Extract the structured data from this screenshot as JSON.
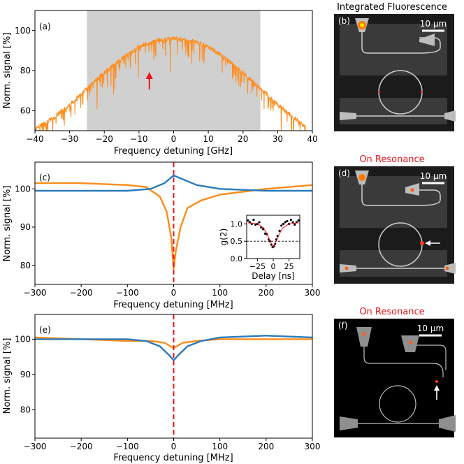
{
  "colors": {
    "orange": "#ff8c1a",
    "blue": "#2b7bba",
    "red": "#e8161b",
    "shade": "#d0d0d0",
    "micro_bg": "#1b1b1b",
    "device_bg": "#3a3a3a"
  },
  "chart_data": [
    {
      "type": "line",
      "panel": "(a)",
      "xlabel": "Frequency detuning [GHz]",
      "ylabel": "Norm. signal [%]",
      "xlim": [
        -40,
        40
      ],
      "ylim": [
        50,
        110
      ],
      "xticks": [
        "−40",
        "−30",
        "−20",
        "−10",
        "0",
        "10",
        "20",
        "30",
        "40"
      ],
      "yticks": [
        "60",
        "80",
        "100"
      ],
      "shaded_region": [
        -25,
        25
      ],
      "arrow_at_x": -7,
      "series": [
        {
          "name": "fluorescence",
          "color": "orange",
          "x": [
            -40,
            -35,
            -30,
            -25,
            -20,
            -15,
            -10,
            -5,
            0,
            5,
            10,
            15,
            20,
            25,
            30,
            35,
            38
          ],
          "values": [
            51,
            56,
            63,
            71,
            79,
            86,
            92,
            95,
            96,
            95,
            92,
            86,
            79,
            71,
            63,
            56,
            52
          ]
        }
      ]
    },
    {
      "type": "line",
      "panel": "(c)",
      "xlabel": "Frequency detuning [MHz]",
      "ylabel": "Norm. signal [%]",
      "xlim": [
        -300,
        300
      ],
      "ylim": [
        75,
        107
      ],
      "xticks": [
        "−300",
        "−200",
        "−100",
        "0",
        "100",
        "200",
        "300"
      ],
      "yticks": [
        "80",
        "90",
        "100"
      ],
      "resonance_line_x": 0,
      "series": [
        {
          "name": "orange",
          "color": "orange",
          "x": [
            -300,
            -200,
            -100,
            -60,
            -30,
            -15,
            -5,
            0,
            5,
            15,
            30,
            60,
            100,
            200,
            300
          ],
          "values": [
            101.5,
            101.5,
            101,
            100.5,
            98,
            94,
            87,
            79,
            84,
            90,
            95,
            97,
            98.5,
            100,
            101
          ]
        },
        {
          "name": "blue",
          "color": "blue",
          "x": [
            -300,
            -200,
            -100,
            -50,
            -20,
            0,
            20,
            50,
            100,
            200,
            300
          ],
          "values": [
            99.5,
            99.5,
            99.5,
            100,
            101.5,
            103.5,
            102.5,
            101,
            100,
            99.5,
            99.5
          ]
        }
      ],
      "inset": {
        "xlabel": "Delay [ns]",
        "ylabel": "g(2)",
        "xlim": [
          -42,
          42
        ],
        "ylim": [
          0,
          1.25
        ],
        "xticks": [
          "−25",
          "0",
          "25"
        ],
        "yticks": [
          "0.0",
          "0.5",
          "1.0"
        ],
        "threshold": 0.5,
        "points": {
          "x": [
            -40,
            -37,
            -34,
            -31,
            -28,
            -25,
            -22,
            -19,
            -16,
            -13,
            -10,
            -7,
            -5,
            -3,
            -1,
            1,
            3,
            5,
            7,
            10,
            13,
            16,
            19,
            22,
            25,
            28,
            31,
            34,
            37,
            40
          ],
          "values": [
            1.1,
            1.05,
            1.0,
            1.12,
            0.98,
            1.0,
            1.05,
            0.9,
            0.85,
            0.72,
            0.7,
            0.55,
            0.5,
            0.4,
            0.33,
            0.35,
            0.42,
            0.55,
            0.65,
            0.8,
            0.95,
            1.0,
            1.05,
            1.08,
            1.0,
            1.12,
            1.05,
            0.98,
            1.05,
            1.1
          ]
        },
        "fit": {
          "x": [
            -40,
            -25,
            -15,
            -10,
            -5,
            0,
            5,
            10,
            15,
            25,
            40
          ],
          "values": [
            1.03,
            1.0,
            0.88,
            0.72,
            0.5,
            0.35,
            0.5,
            0.72,
            0.88,
            1.0,
            1.03
          ]
        }
      }
    },
    {
      "type": "line",
      "panel": "(e)",
      "xlabel": "Frequency detuning [MHz]",
      "ylabel": "Norm. signal [%]",
      "xlim": [
        -300,
        300
      ],
      "ylim": [
        72,
        107
      ],
      "xticks": [
        "−300",
        "−200",
        "−100",
        "0",
        "100",
        "200",
        "300"
      ],
      "yticks": [
        "80",
        "90",
        "100"
      ],
      "resonance_line_x": 0,
      "series": [
        {
          "name": "orange",
          "color": "orange",
          "x": [
            -300,
            -200,
            -100,
            -50,
            -20,
            0,
            20,
            50,
            100,
            200,
            300
          ],
          "values": [
            100.5,
            100,
            99.5,
            99.5,
            99,
            97.5,
            99,
            99.5,
            100,
            100,
            100
          ]
        },
        {
          "name": "blue",
          "color": "blue",
          "x": [
            -300,
            -200,
            -100,
            -60,
            -30,
            -10,
            0,
            10,
            30,
            60,
            100,
            200,
            300
          ],
          "values": [
            100,
            100,
            100,
            99.5,
            98,
            95.5,
            94,
            95.5,
            98,
            99.5,
            100.5,
            101,
            100.5
          ]
        }
      ]
    }
  ],
  "images": [
    {
      "panel": "(b)",
      "title": "Integrated Fluorescence",
      "scale_bar": "10 μm",
      "marker": "none"
    },
    {
      "panel": "(d)",
      "title": "On Resonance",
      "scale_bar": "10 μm",
      "marker": "arrow-left"
    },
    {
      "panel": "(f)",
      "title": "On Resonance",
      "scale_bar": "10 μm",
      "marker": "arrow-up"
    }
  ]
}
